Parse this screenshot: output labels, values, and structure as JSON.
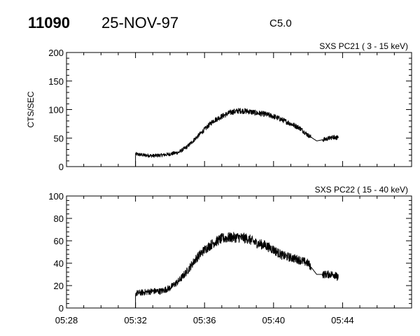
{
  "header": {
    "id": "11090",
    "date": "25-NOV-97",
    "class": "C5.0"
  },
  "chart_data": [
    {
      "type": "line",
      "title": "SXS PC21  (  3 - 15 keV)",
      "ylabel": "CTS/SEC",
      "xlim": [
        "05:28",
        "05:48"
      ],
      "ylim": [
        0,
        200
      ],
      "yticks": [
        0,
        50,
        100,
        150,
        200
      ],
      "xticks": [
        "05:28",
        "05:32",
        "05:36",
        "05:40",
        "05:44"
      ],
      "grid": false,
      "series": [
        {
          "x": [
            "05:32:00",
            "05:32:30",
            "05:33:00",
            "05:33:30",
            "05:34:00",
            "05:34:30",
            "05:35:00",
            "05:35:30",
            "05:36:00",
            "05:36:30",
            "05:37:00",
            "05:37:30",
            "05:38:00",
            "05:38:30",
            "05:39:00",
            "05:39:30",
            "05:40:00",
            "05:40:30",
            "05:41:00",
            "05:41:30",
            "05:42:00",
            "05:42:30",
            "05:43:00",
            "05:43:30",
            "05:43:45"
          ],
          "values": [
            22,
            20,
            19,
            20,
            22,
            25,
            35,
            50,
            65,
            80,
            88,
            95,
            98,
            97,
            94,
            92,
            88,
            82,
            75,
            68,
            55,
            45,
            48,
            52,
            50
          ]
        }
      ]
    },
    {
      "type": "line",
      "title": "SXS PC22  ( 15 - 40 keV)",
      "ylabel": "",
      "xlim": [
        "05:28",
        "05:48"
      ],
      "ylim": [
        0,
        100
      ],
      "yticks": [
        0,
        20,
        40,
        60,
        80,
        100
      ],
      "xticks": [
        "05:28",
        "05:32",
        "05:36",
        "05:40",
        "05:44"
      ],
      "grid": false,
      "series": [
        {
          "x": [
            "05:32:00",
            "05:32:30",
            "05:33:00",
            "05:33:30",
            "05:34:00",
            "05:34:30",
            "05:35:00",
            "05:35:30",
            "05:36:00",
            "05:36:30",
            "05:37:00",
            "05:37:30",
            "05:38:00",
            "05:38:30",
            "05:39:00",
            "05:39:30",
            "05:40:00",
            "05:40:30",
            "05:41:00",
            "05:41:30",
            "05:42:00",
            "05:42:30",
            "05:43:00",
            "05:43:30",
            "05:43:45"
          ],
          "values": [
            13,
            14,
            15,
            15,
            18,
            24,
            33,
            44,
            52,
            58,
            62,
            63,
            63,
            62,
            58,
            56,
            52,
            47,
            45,
            43,
            40,
            30,
            30,
            30,
            27
          ]
        }
      ]
    }
  ]
}
